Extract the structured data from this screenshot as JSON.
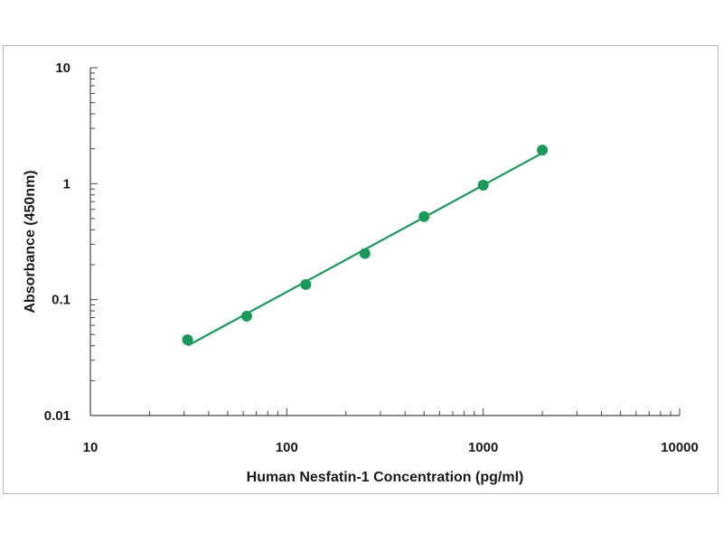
{
  "chart_data": {
    "type": "scatter",
    "title": "",
    "xlabel": "Human Nesfatin-1 Concentration (pg/ml)",
    "ylabel": "Absorbance (450nm)",
    "x_scale": "log",
    "y_scale": "log",
    "xlim": [
      10,
      10000
    ],
    "ylim": [
      0.01,
      10
    ],
    "x_ticks": [
      10,
      100,
      1000,
      10000
    ],
    "x_tick_labels": [
      "10",
      "100",
      "1000",
      "10000"
    ],
    "y_ticks": [
      0.01,
      0.1,
      1,
      10
    ],
    "y_tick_labels": [
      "0.01",
      "0.1",
      "1",
      "10"
    ],
    "grid": false,
    "legend": "none",
    "series": [
      {
        "color": "#1a9a5a",
        "x": [
          31.25,
          62.5,
          125,
          250,
          500,
          1000,
          2000
        ],
        "y": [
          0.045,
          0.072,
          0.135,
          0.25,
          0.52,
          0.97,
          1.95
        ],
        "fit_line": true
      }
    ]
  }
}
